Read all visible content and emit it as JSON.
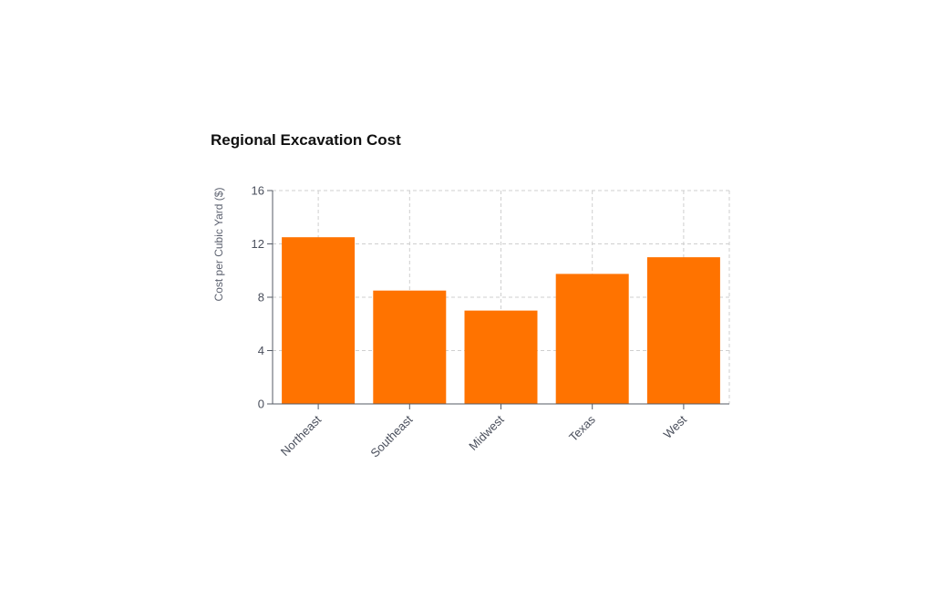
{
  "chart_data": {
    "type": "bar",
    "title": "Regional Excavation Cost",
    "xlabel": "",
    "ylabel": "Cost per Cubic Yard ($)",
    "categories": [
      "Northeast",
      "Southeast",
      "Midwest",
      "Texas",
      "West"
    ],
    "values": [
      12.5,
      8.5,
      7.0,
      9.75,
      11.0
    ],
    "ylim": [
      0,
      16
    ],
    "yticks": [
      0,
      4,
      8,
      12,
      16
    ],
    "grid": true,
    "bar_color": "#ff7300"
  }
}
